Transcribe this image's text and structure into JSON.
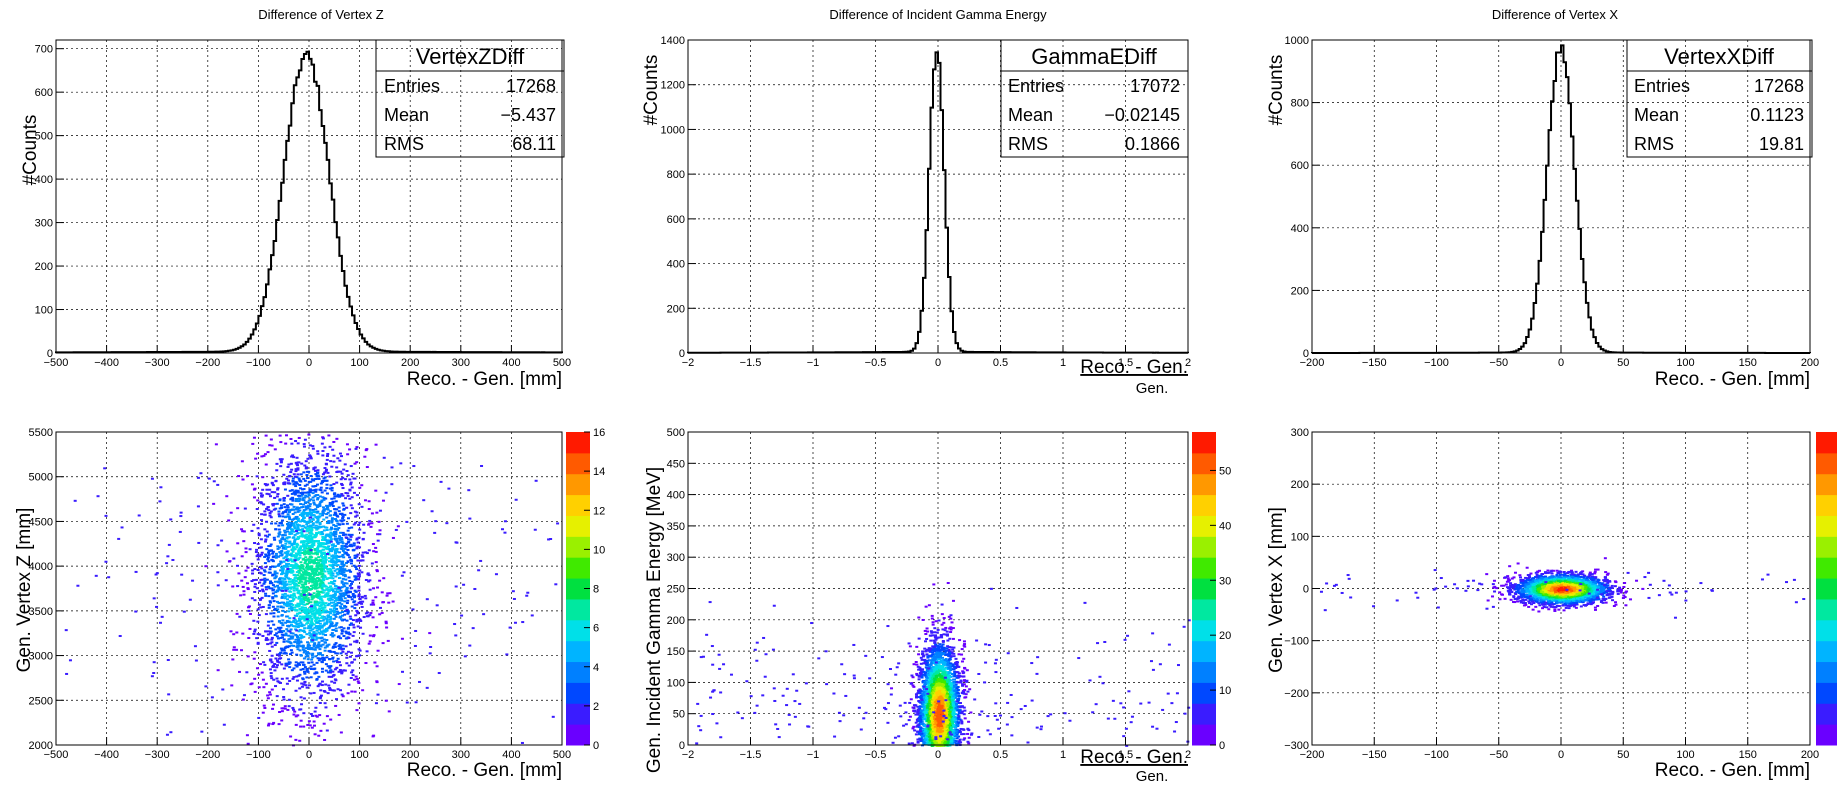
{
  "chart_data": [
    {
      "type": "bar",
      "histogram": true,
      "title": "Difference of Vertex Z",
      "xlabel": "Reco. - Gen. [mm]",
      "ylabel": "#Counts",
      "xlim": [
        -500,
        500
      ],
      "ylim": [
        0,
        720
      ],
      "xticks": [
        "−500",
        "−400",
        "−300",
        "−200",
        "−100",
        "0",
        "100",
        "200",
        "300",
        "400",
        "500"
      ],
      "yticks": [
        "0",
        "100",
        "200",
        "300",
        "400",
        "500",
        "600",
        "700"
      ],
      "grid": true,
      "stats": {
        "name": "VertexZDiff",
        "rows": [
          {
            "label": "Entries",
            "value": "17268"
          },
          {
            "label": "Mean",
            "value": "−5.437"
          },
          {
            "label": "RMS",
            "value": "68.11"
          }
        ]
      },
      "profile": {
        "center": -5,
        "sigma": 45,
        "peak": 680,
        "tail": 4,
        "tail_width": 500
      }
    },
    {
      "type": "bar",
      "histogram": true,
      "title": "Difference of Incident Gamma Energy",
      "xlabel": "Reco. - Gen.",
      "xlabel_denominator": "Gen.",
      "ylabel": "#Counts",
      "xlim": [
        -2,
        2
      ],
      "ylim": [
        0,
        1400
      ],
      "xticks": [
        "−2",
        "−1.5",
        "−1",
        "−0.5",
        "0",
        "0.5",
        "1",
        "1.5",
        "2"
      ],
      "yticks": [
        "0",
        "200",
        "400",
        "600",
        "800",
        "1000",
        "1200",
        "1400"
      ],
      "grid": true,
      "stats": {
        "name": "GammaEDiff",
        "rows": [
          {
            "label": "Entries",
            "value": "17072"
          },
          {
            "label": "Mean",
            "value": "−0.02145"
          },
          {
            "label": "RMS",
            "value": "0.1866"
          }
        ]
      },
      "profile": {
        "center": -0.01,
        "sigma": 0.06,
        "peak": 1340,
        "tail": 6,
        "tail_width": 1.2
      }
    },
    {
      "type": "bar",
      "histogram": true,
      "title": "Difference of Vertex X",
      "xlabel": "Reco. - Gen. [mm]",
      "ylabel": "#Counts",
      "xlim": [
        -200,
        200
      ],
      "ylim": [
        0,
        1000
      ],
      "xticks": [
        "−200",
        "−150",
        "−100",
        "−50",
        "0",
        "50",
        "100",
        "150",
        "200"
      ],
      "yticks": [
        "0",
        "200",
        "400",
        "600",
        "800",
        "1000"
      ],
      "grid": true,
      "stats": {
        "name": "VertexXDiff",
        "rows": [
          {
            "label": "Entries",
            "value": "17268"
          },
          {
            "label": "Mean",
            "value": "0.1123"
          },
          {
            "label": "RMS",
            "value": "19.81"
          }
        ]
      },
      "profile": {
        "center": 0,
        "sigma": 11,
        "peak": 980,
        "tail": 3,
        "tail_width": 60
      }
    },
    {
      "type": "heatmap",
      "xlabel": "Reco. - Gen. [mm]",
      "ylabel": "Gen. Vertex Z [mm]",
      "xlim": [
        -500,
        500
      ],
      "ylim": [
        2000,
        5500
      ],
      "xticks": [
        "−500",
        "−400",
        "−300",
        "−200",
        "−100",
        "0",
        "100",
        "200",
        "300",
        "400",
        "500"
      ],
      "yticks": [
        "2000",
        "2500",
        "3000",
        "3500",
        "4000",
        "4500",
        "5000",
        "5500"
      ],
      "colorbar_ticks": [
        "0",
        "2",
        "4",
        "6",
        "8",
        "10",
        "12",
        "14",
        "16"
      ],
      "colorbar_max": 16,
      "grid": true,
      "blob": {
        "cx": 0,
        "cy": 3900,
        "sx": 55,
        "sy": 700,
        "peak_value": 7,
        "n": 3200,
        "halo_n": 260
      }
    },
    {
      "type": "heatmap",
      "xlabel": "Reco. - Gen.",
      "xlabel_denominator": "Gen.",
      "ylabel": "Gen. Incident Gamma Energy [MeV]",
      "xlim": [
        -2,
        2
      ],
      "ylim": [
        0,
        500
      ],
      "xticks": [
        "−2",
        "−1.5",
        "−1",
        "−0.5",
        "0",
        "0.5",
        "1",
        "1.5",
        "2"
      ],
      "yticks": [
        "0",
        "50",
        "100",
        "150",
        "200",
        "250",
        "300",
        "350",
        "400",
        "450",
        "500"
      ],
      "colorbar_ticks": [
        "0",
        "10",
        "20",
        "30",
        "40",
        "50"
      ],
      "colorbar_max": 57,
      "grid": true,
      "blob": {
        "cx": 0,
        "cy": 50,
        "sx": 0.08,
        "sy": 55,
        "peak_value": 55,
        "n": 3400,
        "halo_n": 520
      }
    },
    {
      "type": "heatmap",
      "xlabel": "Reco. - Gen. [mm]",
      "ylabel": "Gen. Vertex X [mm]",
      "xlim": [
        -200,
        200
      ],
      "ylim": [
        -300,
        300
      ],
      "xticks": [
        "−200",
        "−150",
        "−100",
        "−50",
        "0",
        "50",
        "100",
        "150",
        "200"
      ],
      "yticks": [
        "−300",
        "−200",
        "−100",
        "0",
        "100",
        "200",
        "300"
      ],
      "colorbar_ticks": [],
      "colorbar_max": 40,
      "grid": true,
      "blob": {
        "cx": 0,
        "cy": 0,
        "sx": 18,
        "sy": 14,
        "peak_value": 40,
        "n": 2600,
        "halo_n": 90
      }
    }
  ]
}
